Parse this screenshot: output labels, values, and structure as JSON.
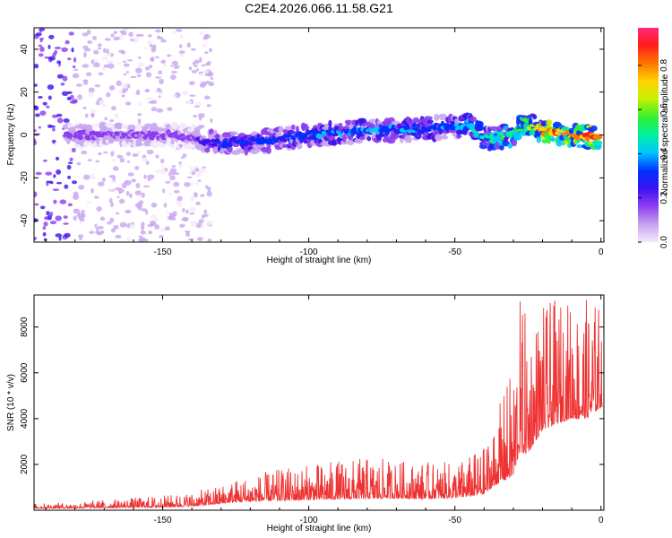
{
  "title": "C2E4.2026.066.11.58.G21",
  "chart_data": [
    {
      "type": "heatmap",
      "name": "spectrogram",
      "xlabel": "Height of straight line (km)",
      "ylabel": "Frequency (Hz)",
      "xlim": [
        -194,
        1
      ],
      "ylim": [
        -50,
        50
      ],
      "xticks": [
        -150,
        -100,
        -50,
        0
      ],
      "xtick_labels": [
        "-150",
        "-100",
        "-50",
        "0"
      ],
      "yticks": [
        -40,
        -20,
        0,
        20,
        40
      ],
      "ytick_labels": [
        "-40",
        "-20",
        "0",
        "20",
        "40"
      ],
      "colorbar": {
        "label": "Normalized spectral amplitude",
        "range": [
          0,
          0.97
        ],
        "ticks": [
          0,
          0.2,
          0.4,
          0.6,
          0.8
        ],
        "tick_labels": [
          "0.0",
          "0.2",
          "0.4",
          "0.6",
          "0.8"
        ],
        "colormap": [
          "#f4eafa",
          "#c9a6f0",
          "#8c3cf0",
          "#3a12f0",
          "#0030ff",
          "#00c8ff",
          "#00f0a0",
          "#30f030",
          "#c8f000",
          "#ffd400",
          "#ff7a00",
          "#ff1a1a",
          "#ff2a7a"
        ]
      },
      "ridge": {
        "x": [
          -183,
          -170,
          -150,
          -140,
          -135,
          -130,
          -110,
          -100,
          -80,
          -60,
          -50,
          -45,
          -40,
          -30,
          -26,
          -20,
          -10,
          -2
        ],
        "freq_hz": [
          0,
          0,
          0,
          -1,
          -3,
          -4,
          -2,
          0,
          2,
          3,
          4,
          5,
          -2,
          0,
          6,
          2,
          0,
          -1
        ],
        "amplitude": [
          0.18,
          0.16,
          0.16,
          0.15,
          0.28,
          0.32,
          0.34,
          0.36,
          0.38,
          0.38,
          0.36,
          0.45,
          0.5,
          0.55,
          0.6,
          0.8,
          0.9,
          0.88
        ]
      },
      "noise_region_x": [
        -194,
        -133
      ]
    },
    {
      "type": "line",
      "name": "snr",
      "xlabel": "Height of straight line (km)",
      "ylabel": "SNR (10 * v/v)",
      "xlim": [
        -194,
        1
      ],
      "ylim": [
        0,
        9400
      ],
      "xticks": [
        -150,
        -100,
        -50,
        0
      ],
      "xtick_labels": [
        "-150",
        "-100",
        "-50",
        "0"
      ],
      "yticks": [
        2000,
        4000,
        6000,
        8000
      ],
      "ytick_labels": [
        "2000",
        "4000",
        "6000",
        "8000"
      ],
      "color": "#ee3333",
      "envelope": {
        "x": [
          -194,
          -180,
          -165,
          -150,
          -140,
          -133,
          -125,
          -110,
          -100,
          -90,
          -80,
          -70,
          -60,
          -50,
          -45,
          -40,
          -35,
          -30,
          -28,
          -25,
          -20,
          -15,
          -10,
          -5,
          0
        ],
        "baseline": [
          80,
          90,
          110,
          130,
          170,
          250,
          350,
          420,
          450,
          480,
          500,
          520,
          500,
          540,
          600,
          700,
          1200,
          1500,
          2500,
          2500,
          3500,
          3800,
          4000,
          4000,
          4500
        ],
        "peak": [
          300,
          350,
          500,
          650,
          800,
          1000,
          1400,
          1800,
          2000,
          2200,
          2300,
          2200,
          2100,
          2100,
          2400,
          2800,
          4500,
          6500,
          9400,
          8500,
          9000,
          9200,
          9300,
          9300,
          9200
        ]
      }
    }
  ]
}
